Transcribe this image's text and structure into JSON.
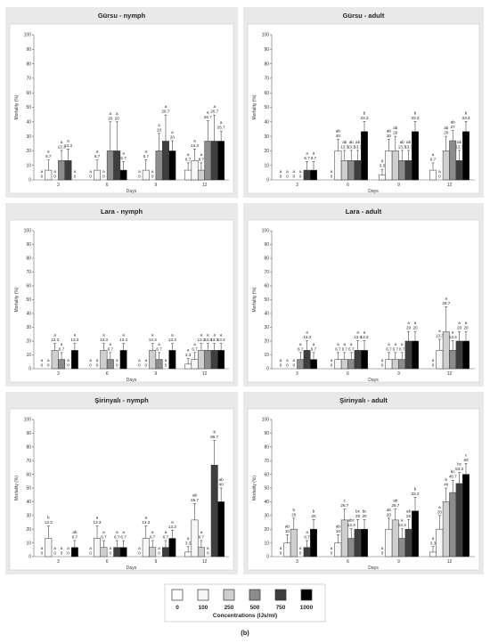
{
  "figure_label": "(b)",
  "legend": {
    "title": "Concentrations (IJs/ml)",
    "items": [
      "0",
      "100",
      "250",
      "500",
      "750",
      "1000"
    ],
    "colors": [
      "#ffffff",
      "#f7f7f7",
      "#cfcfcf",
      "#8c8c8c",
      "#3e3e3e",
      "#000000"
    ]
  },
  "chart_data": [
    {
      "type": "bar",
      "title": "Gürsu - nymph",
      "xlabel": "Days",
      "ylabel": "Mortality (%)",
      "ylim": [
        0,
        100
      ],
      "yticks": [
        "0",
        "10",
        "20",
        "30",
        "40",
        "50",
        "60",
        "70",
        "80",
        "90",
        "100"
      ],
      "categories": [
        "3",
        "6",
        "9",
        "12"
      ],
      "series": [
        {
          "name": "0",
          "values": [
            0,
            0,
            0,
            6.7
          ],
          "errors": [
            0,
            0,
            0,
            5
          ],
          "value_labels": [
            "0",
            "0",
            "0",
            "6.7"
          ],
          "letters": [
            "a",
            "a",
            "a",
            "a"
          ]
        },
        {
          "name": "100",
          "values": [
            6.7,
            6.7,
            6.7,
            13.3
          ],
          "errors": [
            7,
            7,
            7,
            8
          ],
          "value_labels": [
            "6.7",
            "6.7",
            "6.7",
            "13.3"
          ],
          "letters": [
            "a",
            "a",
            "a",
            "a"
          ]
        },
        {
          "name": "250",
          "values": [
            0,
            0,
            0,
            6.7
          ],
          "errors": [
            0,
            0,
            0,
            5
          ],
          "value_labels": [
            "0",
            "0",
            "0",
            "6.7"
          ],
          "letters": [
            "a",
            "a",
            "a",
            "a"
          ]
        },
        {
          "name": "500",
          "values": [
            13.3,
            20,
            20,
            26.7
          ],
          "errors": [
            7,
            20,
            12,
            14
          ],
          "value_labels": [
            "13.3",
            "20",
            "20",
            "26.7"
          ],
          "letters": [
            "a",
            "a",
            "a",
            "a"
          ]
        },
        {
          "name": "750",
          "values": [
            13.3,
            20,
            26.7,
            26.7
          ],
          "errors": [
            8,
            20,
            18,
            18
          ],
          "value_labels": [
            "13.3",
            "20",
            "26.7",
            "26.7"
          ],
          "letters": [
            "a",
            "a",
            "a",
            "a"
          ]
        },
        {
          "name": "1000",
          "values": [
            0,
            6.7,
            20,
            26.7
          ],
          "errors": [
            0,
            6,
            7,
            7
          ],
          "value_labels": [
            "0",
            "6.7",
            "20",
            "26.7"
          ],
          "letters": [
            "a",
            "a",
            "a",
            "a"
          ]
        }
      ]
    },
    {
      "type": "bar",
      "title": "Gürsu - adult",
      "xlabel": "Days",
      "ylabel": "Mortality (%)",
      "ylim": [
        0,
        100
      ],
      "yticks": [
        "0",
        "10",
        "20",
        "30",
        "40",
        "50",
        "60",
        "70",
        "80",
        "90",
        "100"
      ],
      "categories": [
        "3",
        "6",
        "9",
        "12"
      ],
      "series": [
        {
          "name": "0",
          "values": [
            0,
            0,
            3.3,
            6.7
          ],
          "errors": [
            0,
            0,
            4,
            5
          ],
          "value_labels": [
            "0",
            "0",
            "3.3",
            "6.7"
          ],
          "letters": [
            "a",
            "a",
            "a",
            "a"
          ]
        },
        {
          "name": "100",
          "values": [
            0,
            20,
            20,
            0
          ],
          "errors": [
            0,
            8,
            8,
            0
          ],
          "value_labels": [
            "0",
            "20",
            "20",
            "0"
          ],
          "letters": [
            "a",
            "ab",
            "ab",
            "a"
          ]
        },
        {
          "name": "250",
          "values": [
            0,
            13.3,
            20,
            20
          ],
          "errors": [
            0,
            7,
            10,
            10
          ],
          "value_labels": [
            "0",
            "13.3",
            "20",
            "20"
          ],
          "letters": [
            "a",
            "ab",
            "ab",
            "ab"
          ]
        },
        {
          "name": "500",
          "values": [
            0,
            13.3,
            13.3,
            27
          ],
          "errors": [
            0,
            7,
            7,
            7
          ],
          "value_labels": [
            "0",
            "13.3",
            "13.3",
            "27"
          ],
          "letters": [
            "a",
            "ab",
            "ab",
            "ab"
          ]
        },
        {
          "name": "750",
          "values": [
            6.7,
            13.3,
            13.3,
            13.3
          ],
          "errors": [
            6,
            7,
            7,
            7
          ],
          "value_labels": [
            "6.7",
            "13.3",
            "13.3",
            "13.3"
          ],
          "letters": [
            "a",
            "ab",
            "ab",
            "ab"
          ]
        },
        {
          "name": "1000",
          "values": [
            6.7,
            33.3,
            33.3,
            33.3
          ],
          "errors": [
            6,
            7,
            7,
            7
          ],
          "value_labels": [
            "6.7",
            "33.3",
            "33.3",
            "33.3"
          ],
          "letters": [
            "a",
            "b",
            "b",
            "b"
          ]
        }
      ]
    },
    {
      "type": "bar",
      "title": "Lara - nymph",
      "xlabel": "Days",
      "ylabel": "Mortality (%)",
      "ylim": [
        0,
        100
      ],
      "yticks": [
        "0",
        "10",
        "20",
        "30",
        "40",
        "50",
        "60",
        "70",
        "80",
        "90",
        "100"
      ],
      "categories": [
        "3",
        "6",
        "9",
        "12"
      ],
      "series": [
        {
          "name": "0",
          "values": [
            0,
            0,
            0,
            3.3
          ],
          "errors": [
            0,
            0,
            0,
            4
          ],
          "value_labels": [
            "0",
            "0",
            "0",
            "3.3"
          ],
          "letters": [
            "a",
            "a",
            "a",
            "a"
          ]
        },
        {
          "name": "100",
          "values": [
            0,
            0,
            0,
            6.7
          ],
          "errors": [
            0,
            0,
            0,
            5
          ],
          "value_labels": [
            "0",
            "0",
            "0",
            "6.7"
          ],
          "letters": [
            "a",
            "a",
            "a",
            "a"
          ]
        },
        {
          "name": "250",
          "values": [
            13.3,
            13.3,
            13.3,
            13.3
          ],
          "errors": [
            5,
            5,
            5,
            5
          ],
          "value_labels": [
            "13.3",
            "13.3",
            "13.3",
            "13.3"
          ],
          "letters": [
            "a",
            "a",
            "a",
            "a"
          ]
        },
        {
          "name": "500",
          "values": [
            6.7,
            6.7,
            6.7,
            13.3
          ],
          "errors": [
            5,
            5,
            5,
            5
          ],
          "value_labels": [
            "6.7",
            "6.7",
            "6.7",
            "13.3"
          ],
          "letters": [
            "a",
            "a",
            "a",
            "a"
          ]
        },
        {
          "name": "750",
          "values": [
            0,
            0,
            0,
            13.3
          ],
          "errors": [
            0,
            0,
            0,
            5
          ],
          "value_labels": [
            "0",
            "0",
            "0",
            "13.3"
          ],
          "letters": [
            "a",
            "a",
            "a",
            "a"
          ]
        },
        {
          "name": "1000",
          "values": [
            13.3,
            13.3,
            13.3,
            13.3
          ],
          "errors": [
            5,
            5,
            5,
            5
          ],
          "value_labels": [
            "13.3",
            "13.3",
            "13.3",
            "13.3"
          ],
          "letters": [
            "a",
            "a",
            "a",
            "a"
          ]
        }
      ]
    },
    {
      "type": "bar",
      "title": "Lara - adult",
      "xlabel": "Days",
      "ylabel": "Mortality (%)",
      "ylim": [
        0,
        100
      ],
      "yticks": [
        "0",
        "10",
        "20",
        "30",
        "40",
        "50",
        "60",
        "70",
        "80",
        "90",
        "100"
      ],
      "categories": [
        "3",
        "6",
        "9",
        "12"
      ],
      "series": [
        {
          "name": "0",
          "values": [
            0,
            0,
            0,
            0
          ],
          "errors": [
            0,
            0,
            0,
            0
          ],
          "value_labels": [
            "0",
            "0",
            "0",
            "0"
          ],
          "letters": [
            "a",
            "a",
            "a",
            "a"
          ]
        },
        {
          "name": "100",
          "values": [
            0,
            6.7,
            6.7,
            13.3
          ],
          "errors": [
            0,
            5,
            5,
            8
          ],
          "value_labels": [
            "0",
            "6.7",
            "6.7",
            "13.3"
          ],
          "letters": [
            "a",
            "a",
            "a",
            "a"
          ]
        },
        {
          "name": "250",
          "values": [
            0,
            6.7,
            6.7,
            26.7
          ],
          "errors": [
            0,
            5,
            5,
            18
          ],
          "value_labels": [
            "0",
            "6.7",
            "6.7",
            "26.7"
          ],
          "letters": [
            "a",
            "a",
            "a",
            "a"
          ]
        },
        {
          "name": "500",
          "values": [
            6.7,
            6.7,
            6.7,
            13.3
          ],
          "errors": [
            5,
            5,
            5,
            7
          ],
          "value_labels": [
            "6.7",
            "6.7",
            "6.7",
            "13.3"
          ],
          "letters": [
            "a",
            "a",
            "a",
            "a"
          ]
        },
        {
          "name": "750",
          "values": [
            13.3,
            13.3,
            20,
            20
          ],
          "errors": [
            7,
            7,
            7,
            7
          ],
          "value_labels": [
            "13.3",
            "13.3",
            "20",
            "20"
          ],
          "letters": [
            "a",
            "a",
            "a",
            "a"
          ]
        },
        {
          "name": "1000",
          "values": [
            6.7,
            13.3,
            20,
            20
          ],
          "errors": [
            5,
            7,
            7,
            7
          ],
          "value_labels": [
            "6.7",
            "13.3",
            "20",
            "20"
          ],
          "letters": [
            "a",
            "a",
            "a",
            "a"
          ]
        }
      ]
    },
    {
      "type": "bar",
      "title": "Şirinyalı - nymph",
      "xlabel": "Days",
      "ylabel": "Mortality (%)",
      "ylim": [
        0,
        100
      ],
      "yticks": [
        "0",
        "10",
        "20",
        "30",
        "40",
        "50",
        "60",
        "70",
        "80",
        "90",
        "100"
      ],
      "categories": [
        "3",
        "6",
        "9",
        "12"
      ],
      "series": [
        {
          "name": "0",
          "values": [
            0,
            0,
            0,
            3.3
          ],
          "errors": [
            0,
            0,
            0,
            4
          ],
          "value_labels": [
            "0",
            "0",
            "0",
            "3.3"
          ],
          "letters": [
            "a",
            "a",
            "a",
            "a"
          ]
        },
        {
          "name": "100",
          "values": [
            13.3,
            13.3,
            13.3,
            26.7
          ],
          "errors": [
            9,
            9,
            9,
            12
          ],
          "value_labels": [
            "13.3",
            "13.3",
            "13.3",
            "26.7"
          ],
          "letters": [
            "b",
            "a",
            "a",
            "ab"
          ]
        },
        {
          "name": "250",
          "values": [
            0,
            6.7,
            6.7,
            6.7
          ],
          "errors": [
            0,
            5,
            5,
            5
          ],
          "value_labels": [
            "0",
            "6.7",
            "6.7",
            "6.7"
          ],
          "letters": [
            "a",
            "a",
            "a",
            "a"
          ]
        },
        {
          "name": "500",
          "values": [
            0,
            0,
            0,
            0
          ],
          "errors": [
            0,
            0,
            0,
            0
          ],
          "value_labels": [
            "0",
            "0",
            "0",
            "0"
          ],
          "letters": [
            "a",
            "a",
            "a",
            "a"
          ]
        },
        {
          "name": "750",
          "values": [
            0,
            6.7,
            6.7,
            66.7
          ],
          "errors": [
            0,
            5,
            5,
            18
          ],
          "value_labels": [
            "0",
            "6.7",
            "6.7",
            "66.7"
          ],
          "letters": [
            "a",
            "a",
            "a",
            "b"
          ]
        },
        {
          "name": "1000",
          "values": [
            6.7,
            6.7,
            13.3,
            40
          ],
          "errors": [
            5,
            5,
            6,
            10
          ],
          "value_labels": [
            "6.7",
            "6.7",
            "13.3",
            "40"
          ],
          "letters": [
            "ab",
            "a",
            "a",
            "ab"
          ]
        }
      ]
    },
    {
      "type": "bar",
      "title": "Şirinyalı - adult",
      "xlabel": "Days",
      "ylabel": "Mortality (%)",
      "ylim": [
        0,
        100
      ],
      "yticks": [
        "0",
        "10",
        "20",
        "30",
        "40",
        "50",
        "60",
        "70",
        "80",
        "90",
        "100"
      ],
      "categories": [
        "3",
        "6",
        "9",
        "12"
      ],
      "series": [
        {
          "name": "0",
          "values": [
            0,
            0,
            0,
            3.3
          ],
          "errors": [
            0,
            0,
            0,
            4
          ],
          "value_labels": [
            "0",
            "0",
            "0",
            "3.3"
          ],
          "letters": [
            "a",
            "a",
            "a",
            "a"
          ]
        },
        {
          "name": "100",
          "values": [
            10,
            10,
            20,
            20
          ],
          "errors": [
            6,
            6,
            8,
            10
          ],
          "value_labels": [
            "10",
            "10",
            "20",
            "20"
          ],
          "letters": [
            "ab",
            "ab",
            "ab",
            "a"
          ]
        },
        {
          "name": "250",
          "values": [
            20,
            26.7,
            26.7,
            40
          ],
          "errors": [
            8,
            8,
            8,
            10
          ],
          "value_labels": [
            "20",
            "26.7",
            "26.7",
            "40"
          ],
          "letters": [
            "b",
            "c",
            "ab",
            "b"
          ]
        },
        {
          "name": "500",
          "values": [
            0,
            13.3,
            13.3,
            46.7
          ],
          "errors": [
            0,
            7,
            7,
            9
          ],
          "value_labels": [
            "0",
            "13.3",
            "13.3",
            "46.7"
          ],
          "letters": [
            "a",
            "abc",
            "a",
            "bc"
          ]
        },
        {
          "name": "750",
          "values": [
            6.7,
            20,
            20,
            53.3
          ],
          "errors": [
            5,
            7,
            7,
            8
          ],
          "value_labels": [
            "6.7",
            "20",
            "20",
            "53.3"
          ],
          "letters": [
            "a",
            "bc",
            "ab",
            "bc"
          ]
        },
        {
          "name": "1000",
          "values": [
            20,
            20,
            33.3,
            60
          ],
          "errors": [
            7,
            7,
            10,
            8
          ],
          "value_labels": [
            "20",
            "20",
            "33.3",
            "60"
          ],
          "letters": [
            "b",
            "bc",
            "b",
            "c"
          ]
        }
      ]
    }
  ]
}
